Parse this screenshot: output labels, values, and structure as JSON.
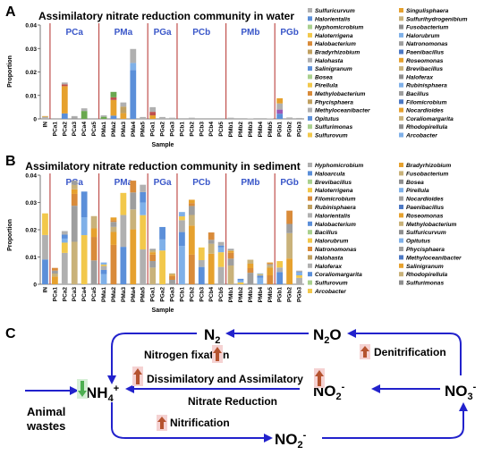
{
  "panel_letters": [
    "A",
    "B",
    "C"
  ],
  "axis_labels": {
    "sample": "Sample",
    "proportion": "Proportion"
  },
  "chart_data": [
    {
      "type": "bar",
      "stacked": true,
      "title": "Assimilatory nitrate reduction community in water",
      "xlabel": "Sample",
      "ylabel": "Proportion",
      "ylim": [
        0,
        0.04
      ],
      "yticks": [
        0,
        0.01,
        0.02,
        0.03,
        0.04
      ],
      "yticklabels": [
        "0",
        "0.01",
        "0.02",
        "0.03",
        "0.04"
      ],
      "group_labels": [
        "PCa",
        "PMa",
        "PGa",
        "PCb",
        "PMb",
        "PGb"
      ],
      "group_sizes": [
        5,
        5,
        3,
        5,
        5,
        3
      ],
      "categories": [
        "IN",
        "PCa1",
        "PCa2",
        "PCa3",
        "PCa4",
        "PCa5",
        "PMa1",
        "PMa2",
        "PMa3",
        "PMa4",
        "PMa5",
        "PGa1",
        "PGa2",
        "PGa3",
        "PCb1",
        "PCb2",
        "PCb3",
        "PCb4",
        "PCb5",
        "PMb1",
        "PMb2",
        "PMb3",
        "PMb4",
        "PMb5",
        "PGb1",
        "PGb2",
        "PGb3"
      ],
      "totals": [
        0.0012,
        0.0003,
        0.0155,
        0.0012,
        0.0045,
        0.0003,
        0.0015,
        0.0115,
        0.007,
        0.0298,
        0.0008,
        0.005,
        0.0008,
        0.0005,
        0.0003,
        0.0005,
        0.0003,
        0.0003,
        0.0003,
        0.0005,
        0.0003,
        0.0002,
        0.0003,
        0.0002,
        0.0088,
        0.0006,
        0.0004
      ],
      "legend": [
        "Sulfuricurvum",
        "Singulisphaera",
        "Halorientalis",
        "Sulfurihydrogenibium",
        "Hyphomicrobium",
        "Fusobacterium",
        "Haloterrigena",
        "Halorubrum",
        "Halobacterium",
        "Natronomonas",
        "Bradyrhizobium",
        "Paenibacillus",
        "Halohasta",
        "Roseomonas",
        "Salinigranum",
        "Brevibacillus",
        "Bosea",
        "Haloferax",
        "Pirellula",
        "Rubinisphaera",
        "Methylobacterium",
        "Bacillus",
        "Phycisphaera",
        "Filomicrobium",
        "Methyloceanibacter",
        "Nocardioides",
        "Opitutus",
        "Coraliomargarita",
        "Sulfurimonas",
        "Rhodopirellula",
        "Sulfurovum",
        "Arcobacter"
      ],
      "legend_position": "right"
    },
    {
      "type": "bar",
      "stacked": true,
      "title": "Assimilatory nitrate reduction community in sediment",
      "xlabel": "Sample",
      "ylabel": "Proportion",
      "ylim": [
        0,
        0.04
      ],
      "yticks": [
        0,
        0.01,
        0.02,
        0.03,
        0.04
      ],
      "yticklabels": [
        "0",
        "0.01",
        "0.02",
        "0.03",
        "0.04"
      ],
      "group_labels": [
        "PCa",
        "PMa",
        "PGa",
        "PCb",
        "PMb",
        "PGb"
      ],
      "group_sizes": [
        5,
        5,
        3,
        5,
        5,
        3
      ],
      "categories": [
        "IN",
        "PCa1",
        "PCa2",
        "PCa3",
        "PCa4",
        "PCa5",
        "PMa1",
        "PMa2",
        "PMa3",
        "PMa4",
        "PMa5",
        "PGa1",
        "PGa2",
        "PGa3",
        "PCb1",
        "PCb2",
        "PCb3",
        "PCb4",
        "PCb5",
        "PMb1",
        "PMb2",
        "PMb3",
        "PMb4",
        "PMb5",
        "PGb1",
        "PGb2",
        "PGb3"
      ],
      "totals": [
        0.026,
        0.006,
        0.0195,
        0.038,
        0.034,
        0.025,
        0.008,
        0.0245,
        0.0335,
        0.038,
        0.0365,
        0.013,
        0.021,
        0.004,
        0.0265,
        0.031,
        0.0135,
        0.019,
        0.0155,
        0.013,
        0.002,
        0.009,
        0.004,
        0.008,
        0.0085,
        0.027,
        0.005
      ],
      "legend": [
        "Hyphomicrobium",
        "Bradyrhizobium",
        "Haloarcula",
        "Fusobacterium",
        "Brevibacillus",
        "Bosea",
        "Haloterrigena",
        "Pirellula",
        "Filomicrobium",
        "Nocardioides",
        "Rubinisphaera",
        "Paenibacillus",
        "Halorientalis",
        "Roseomonas",
        "Halobacterium",
        "Methylobacterium",
        "Bacillus",
        "Sulfuricurvum",
        "Halorubrum",
        "Opitutus",
        "Natronomonas",
        "Phycisphaera",
        "Halohasta",
        "Methyloceanibacter",
        "Haloferax",
        "Salinigranum",
        "Coraliomargarita",
        "Rhodopirellula",
        "Sulfurovum",
        "Sulfurimonas",
        "Arcobacter"
      ],
      "legend_position": "right"
    }
  ],
  "colors": {
    "palette": [
      "#b0b0b0",
      "#e6a12e",
      "#5b8fd9",
      "#c9b27a",
      "#a9d08e",
      "#8e8e8e",
      "#f2c84b",
      "#7fb0e8",
      "#d98b3a",
      "#9e9e9e",
      "#c0a060",
      "#4c78c4"
    ],
    "panel_a_stacks": [
      [
        0.7,
        0.3
      ],
      [
        1.0
      ],
      [
        0.15,
        0.75,
        0.05,
        0.05
      ],
      [
        0.5,
        0.5
      ],
      [
        0.75,
        0.25
      ],
      [
        1.0
      ],
      [
        0.6,
        0.4
      ],
      [
        0.12,
        0.58,
        0.1,
        0.2
      ],
      [
        0.35,
        0.4,
        0.25
      ],
      [
        0.7,
        0.1,
        0.2
      ],
      [
        1.0
      ],
      [
        0.3,
        0.3,
        0.4
      ],
      [
        1.0
      ],
      [
        1.0
      ],
      [
        1.0
      ],
      [
        1.0
      ],
      [
        1.0
      ],
      [
        1.0
      ],
      [
        1.0
      ],
      [
        1.0
      ],
      [
        1.0
      ],
      [
        1.0
      ],
      [
        1.0
      ],
      [
        1.0
      ],
      [
        0.25,
        0.2,
        0.3,
        0.25
      ],
      [
        1.0
      ],
      [
        1.0
      ]
    ],
    "panel_a_stack_colors": [
      [
        "#b0b0b0",
        "#d9a441"
      ],
      [
        "#b0b0b0"
      ],
      [
        "#5b8fd9",
        "#e6a12e",
        "#c0504d",
        "#b0b0b0"
      ],
      [
        "#9e9e9e",
        "#b0b0b0"
      ],
      [
        "#6aa84f",
        "#b0b0b0"
      ],
      [
        "#b0b0b0"
      ],
      [
        "#6aa84f",
        "#b0b0b0"
      ],
      [
        "#5b8fd9",
        "#e6a12e",
        "#c0504d",
        "#6aa84f"
      ],
      [
        "#e6a12e",
        "#c0a060",
        "#b0b0b0"
      ],
      [
        "#5b8fd9",
        "#7fb0e8",
        "#b0b0b0"
      ],
      [
        "#b0b0b0"
      ],
      [
        "#e6a12e",
        "#c0504d",
        "#b0b0b0"
      ],
      [
        "#b0b0b0"
      ],
      [
        "#b0b0b0"
      ],
      [
        "#b0b0b0"
      ],
      [
        "#b0b0b0"
      ],
      [
        "#b0b0b0"
      ],
      [
        "#b0b0b0"
      ],
      [
        "#b0b0b0"
      ],
      [
        "#b0b0b0"
      ],
      [
        "#b0b0b0"
      ],
      [
        "#b0b0b0"
      ],
      [
        "#b0b0b0"
      ],
      [
        "#b0b0b0"
      ],
      [
        "#5b8fd9",
        "#9b59b6",
        "#b0b0b0",
        "#e6a12e"
      ],
      [
        "#b0b0b0"
      ],
      [
        "#b0b0b0"
      ]
    ],
    "panel_b_stack_colors": [
      "#5b8fd9",
      "#e6a12e",
      "#b0b0b0",
      "#c9b27a",
      "#f2c84b",
      "#9e9e9e",
      "#7fb0e8",
      "#d98b3a"
    ],
    "arrow_up": "#b5532f",
    "arrow_down": "#4caf50",
    "cycle_line": "#2222cc",
    "group_label": "#3a57c9",
    "divider": "#c0504d",
    "highlight": "#f5d2d2"
  },
  "cycle": {
    "nodes": {
      "n2": "N",
      "n2_sub": "2",
      "n2o": "N",
      "n2o_sub": "2",
      "n2o_tail": "O",
      "nh4": "NH",
      "nh4_sub": "4",
      "nh4_sup": "+",
      "no2a": "NO",
      "no2a_sub": "2",
      "no2a_sup": "-",
      "no3": "NO",
      "no3_sub": "3",
      "no3_sup": "-",
      "no2b": "NO",
      "no2b_sub": "2",
      "no2b_sup": "-"
    },
    "labels": {
      "nitrogen_fixation": "Nitrogen fixation",
      "dissimilatory": "Dissimilatory and Assimilatory",
      "nitrate_reduction": "Nitrate Reduction",
      "nitrification": "Nitrification",
      "denitrification": "Denitrification",
      "animal_1": "Animal",
      "animal_2": "wastes"
    }
  }
}
